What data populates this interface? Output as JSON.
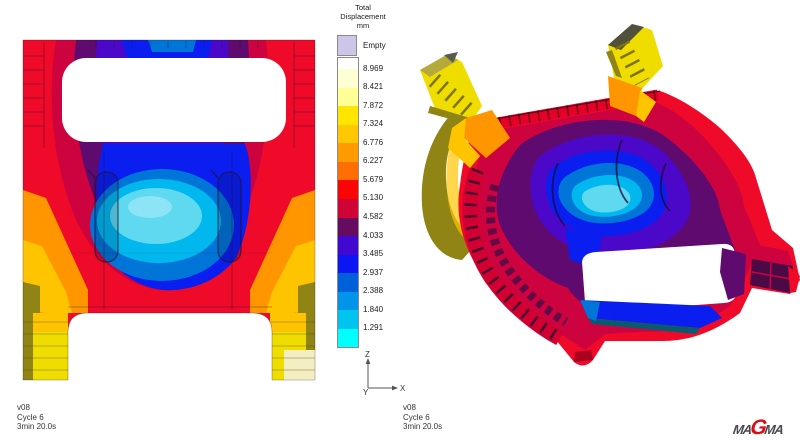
{
  "app": {
    "name": "MAGMA displacement result view"
  },
  "legend": {
    "title_lines": [
      "Total",
      "Displacement",
      "mm"
    ],
    "empty": {
      "label": "Empty",
      "color": "#cec6e8"
    },
    "bands": [
      {
        "color": "#ffffff",
        "label": null
      },
      {
        "color": "#ffffd4",
        "label": "8.969"
      },
      {
        "color": "#ffff96",
        "label": "8.421"
      },
      {
        "color": "#ffe600",
        "label": "7.872"
      },
      {
        "color": "#ffc800",
        "label": "7.324"
      },
      {
        "color": "#ff9b00",
        "label": "6.776"
      },
      {
        "color": "#ff6e00",
        "label": "6.227"
      },
      {
        "color": "#fa0505",
        "label": "5.679"
      },
      {
        "color": "#d00337",
        "label": "5.130"
      },
      {
        "color": "#650b60",
        "label": "4.582"
      },
      {
        "color": "#4109cf",
        "label": "4.033"
      },
      {
        "color": "#0b16f2",
        "label": "3.485"
      },
      {
        "color": "#0060d8",
        "label": "2.937"
      },
      {
        "color": "#0095e8",
        "label": "2.388"
      },
      {
        "color": "#00c4f0",
        "label": "1.840"
      },
      {
        "color": "#00ffff",
        "label": "1.291"
      }
    ]
  },
  "axis": {
    "up": "Z",
    "right": "X",
    "depth": "Y"
  },
  "captions": {
    "front_view": [
      "v08",
      "Cycle 6",
      "3min 20.0s"
    ],
    "iso_view": [
      "v08",
      "Cycle 6",
      "3min 20.0s"
    ]
  },
  "logo": {
    "prefix": "MA",
    "accent": "G",
    "suffix": "MA",
    "accent_color": "#dc0a14",
    "text_color": "#47474f"
  },
  "palette": {
    "red": "#ee0a28",
    "crimson": "#cd0340",
    "darkpurple": "#5f0a6e",
    "violet": "#4b08c8",
    "blue": "#0a1ef0",
    "azure": "#0075d8",
    "cyan": "#00b8ee",
    "lightcyan": "#5ed9f0",
    "palecore": "#8ce4f4",
    "orange": "#ff9600",
    "gold": "#ffc400",
    "yellow": "#f0dd00",
    "olive": "#8f8414",
    "paleyellow": "#f4efc2",
    "line": "#1e1432"
  }
}
